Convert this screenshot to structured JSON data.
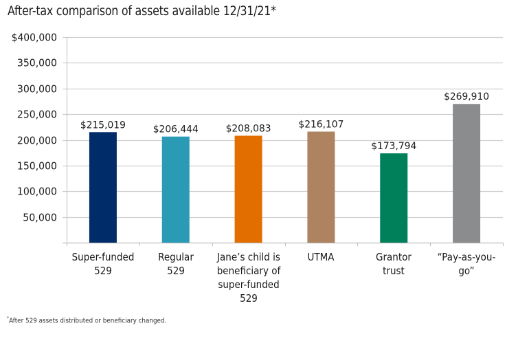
{
  "chart_data": {
    "type": "bar",
    "title": "After-tax comparison of assets available 12/31/21*",
    "xlabel": "",
    "ylabel": "",
    "ylim": [
      0,
      400000
    ],
    "yticks": [
      50000,
      100000,
      150000,
      200000,
      250000,
      300000,
      350000,
      400000
    ],
    "ytick_labels": [
      "50,000",
      "100,000",
      "150,000",
      "200,000",
      "250,000",
      "300,000",
      "350,000",
      "$400,000"
    ],
    "grid": true,
    "legend": "none",
    "categories": [
      "Super-funded\n529",
      "Regular\n529",
      "Jane’s child is\nbeneficiary of\nsuper-funded\n529",
      "UTMA",
      "Grantor\ntrust",
      "“Pay-as-you-go”"
    ],
    "values": [
      215019,
      206444,
      208083,
      216107,
      173794,
      269910
    ],
    "data_labels": [
      "$215,019",
      "$206,444",
      "$208,083",
      "$216,107",
      "$173,794",
      "$269,910"
    ],
    "colors": [
      "#002d6a",
      "#2a9ab5",
      "#e26e00",
      "#ae8360",
      "#00805a",
      "#8b8c8e"
    ],
    "footnote_marker": "*",
    "footnote": "After 529 assets distributed or beneficiary changed."
  },
  "style": {
    "gridline_color": "#cfcfcf",
    "axis_color": "#bdbdbd"
  }
}
